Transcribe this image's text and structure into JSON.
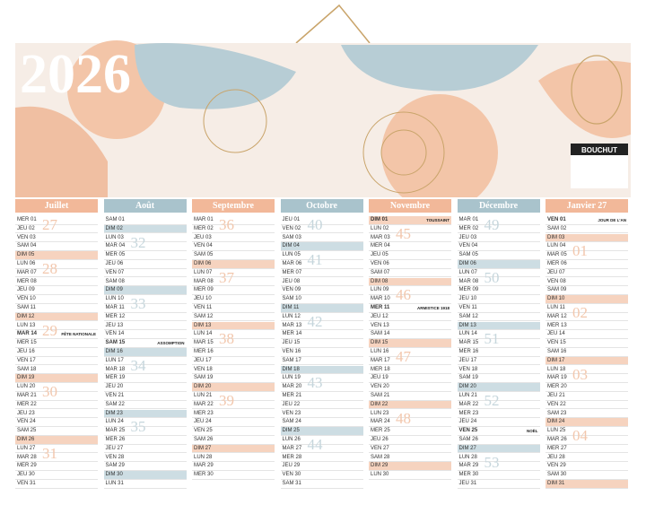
{
  "banner": {
    "year": "2026",
    "brand": "BOUCHUT"
  },
  "months": [
    {
      "name": "Juillet",
      "days": [
        {
          "day": "MER 01",
          "week": "27"
        },
        "JEU 02",
        "VEN 03",
        "SAM 04",
        "DIM 05",
        {
          "day": "LUN 06",
          "week": "28"
        },
        "MAR 07",
        "MER 08",
        "JEU 09",
        "VEN 10",
        "SAM 11",
        "DIM 12",
        {
          "day": "LUN 13",
          "week": "29"
        },
        {
          "day": "MAR 14",
          "note": "FÊTE NATIONALE"
        },
        "MER 15",
        "JEU 16",
        "VEN 17",
        "SAM 18",
        "DIM 19",
        {
          "day": "LUN 20",
          "week": "30"
        },
        "MAR 21",
        "MER 22",
        "JEU 23",
        "VEN 24",
        "SAM 25",
        "DIM 26",
        {
          "day": "LUN 27",
          "week": "31"
        },
        "MAR 28",
        "MER 29",
        "JEU 30",
        "VEN 31"
      ]
    },
    {
      "name": "Août",
      "days": [
        "SAM 01",
        "DIM 02",
        {
          "day": "LUN 03",
          "week": "32"
        },
        "MAR 04",
        "MER 05",
        "JEU 06",
        "VEN 07",
        "SAM 08",
        "DIM 09",
        {
          "day": "LUN 10",
          "week": "33"
        },
        "MAR 11",
        "MER 12",
        "JEU 13",
        "VEN 14",
        {
          "day": "SAM 15",
          "note": "ASSOMPTION"
        },
        "DIM 16",
        {
          "day": "LUN 17",
          "week": "34"
        },
        "MAR 18",
        "MER 19",
        "JEU 20",
        "VEN 21",
        "SAM 22",
        "DIM 23",
        {
          "day": "LUN 24",
          "week": "35"
        },
        "MAR 25",
        "MER 26",
        "JEU 27",
        "VEN 28",
        "SAM 29",
        "DIM 30",
        "LUN 31"
      ]
    },
    {
      "name": "Septembre",
      "days": [
        {
          "day": "MAR 01",
          "week": "36"
        },
        "MER 02",
        "JEU 03",
        "VEN 04",
        "SAM 05",
        "DIM 06",
        {
          "day": "LUN 07",
          "week": "37"
        },
        "MAR 08",
        "MER 09",
        "JEU 10",
        "VEN 11",
        "SAM 12",
        "DIM 13",
        {
          "day": "LUN 14",
          "week": "38"
        },
        "MAR 15",
        "MER 16",
        "JEU 17",
        "VEN 18",
        "SAM 19",
        "DIM 20",
        {
          "day": "LUN 21",
          "week": "39"
        },
        "MAR 22",
        "MER 23",
        "JEU 24",
        "VEN 25",
        "SAM 26",
        "DIM 27",
        "LUN 28",
        "MAR 29",
        "MER 30"
      ]
    },
    {
      "name": "Octobre",
      "days": [
        {
          "day": "JEU 01",
          "week": "40"
        },
        "VEN 02",
        "SAM 03",
        "DIM 04",
        {
          "day": "LUN 05",
          "week": "41"
        },
        "MAR 06",
        "MER 07",
        "JEU 08",
        "VEN 09",
        "SAM 10",
        "DIM 11",
        {
          "day": "LUN 12",
          "week": "42"
        },
        "MAR 13",
        "MER 14",
        "JEU 15",
        "VEN 16",
        "SAM 17",
        "DIM 18",
        {
          "day": "LUN 19",
          "week": "43"
        },
        "MAR 20",
        "MER 21",
        "JEU 22",
        "VEN 23",
        "SAM 24",
        "DIM 25",
        {
          "day": "LUN 26",
          "week": "44"
        },
        "MAR 27",
        "MER 28",
        "JEU 29",
        "VEN 30",
        "SAM 31"
      ]
    },
    {
      "name": "Novembre",
      "days": [
        {
          "day": "DIM 01",
          "note": "TOUSSAINT"
        },
        {
          "day": "LUN 02",
          "week": "45"
        },
        "MAR 03",
        "MER 04",
        "JEU 05",
        "VEN 06",
        "SAM 07",
        "DIM 08",
        {
          "day": "LUN 09",
          "week": "46"
        },
        "MAR 10",
        {
          "day": "MER 11",
          "note": "ARMISTICE 1918"
        },
        "JEU 12",
        "VEN 13",
        "SAM 14",
        "DIM 15",
        {
          "day": "LUN 16",
          "week": "47"
        },
        "MAR 17",
        "MER 18",
        "JEU 19",
        "VEN 20",
        "SAM 21",
        "DIM 22",
        {
          "day": "LUN 23",
          "week": "48"
        },
        "MAR 24",
        "MER 25",
        "JEU 26",
        "VEN 27",
        "SAM 28",
        "DIM 29",
        "LUN 30"
      ]
    },
    {
      "name": "Décembre",
      "days": [
        {
          "day": "MAR 01",
          "week": "49"
        },
        "MER 02",
        "JEU 03",
        "VEN 04",
        "SAM 05",
        "DIM 06",
        {
          "day": "LUN 07",
          "week": "50"
        },
        "MAR 08",
        "MER 09",
        "JEU 10",
        "VEN 11",
        "SAM 12",
        "DIM 13",
        {
          "day": "LUN 14",
          "week": "51"
        },
        "MAR 15",
        "MER 16",
        "JEU 17",
        "VEN 18",
        "SAM 19",
        "DIM 20",
        {
          "day": "LUN 21",
          "week": "52"
        },
        "MAR 22",
        "MER 23",
        "JEU 24",
        {
          "day": "VEN 25",
          "note": "NOËL"
        },
        "SAM 26",
        "DIM 27",
        {
          "day": "LUN 28",
          "week": "53"
        },
        "MAR 29",
        "MER 30",
        "JEU 31"
      ]
    },
    {
      "name": "Janvier 27",
      "days": [
        {
          "day": "VEN 01",
          "note": "JOUR DE L'AN"
        },
        "SAM 02",
        "DIM 03",
        {
          "day": "LUN 04",
          "week": "01"
        },
        "MAR 05",
        "MER 06",
        "JEU 07",
        "VEN 08",
        "SAM 09",
        "DIM 10",
        {
          "day": "LUN 11",
          "week": "02"
        },
        "MAR 12",
        "MER 13",
        "JEU 14",
        "VEN 15",
        "SAM 16",
        "DIM 17",
        {
          "day": "LUN 18",
          "week": "03"
        },
        "MAR 19",
        "MER 20",
        "JEU 21",
        "VEN 22",
        "SAM 23",
        "DIM 24",
        {
          "day": "LUN 25",
          "week": "04"
        },
        "MAR 26",
        "MER 27",
        "JEU 28",
        "VEN 29",
        "SAM 30",
        "DIM 31"
      ]
    }
  ]
}
